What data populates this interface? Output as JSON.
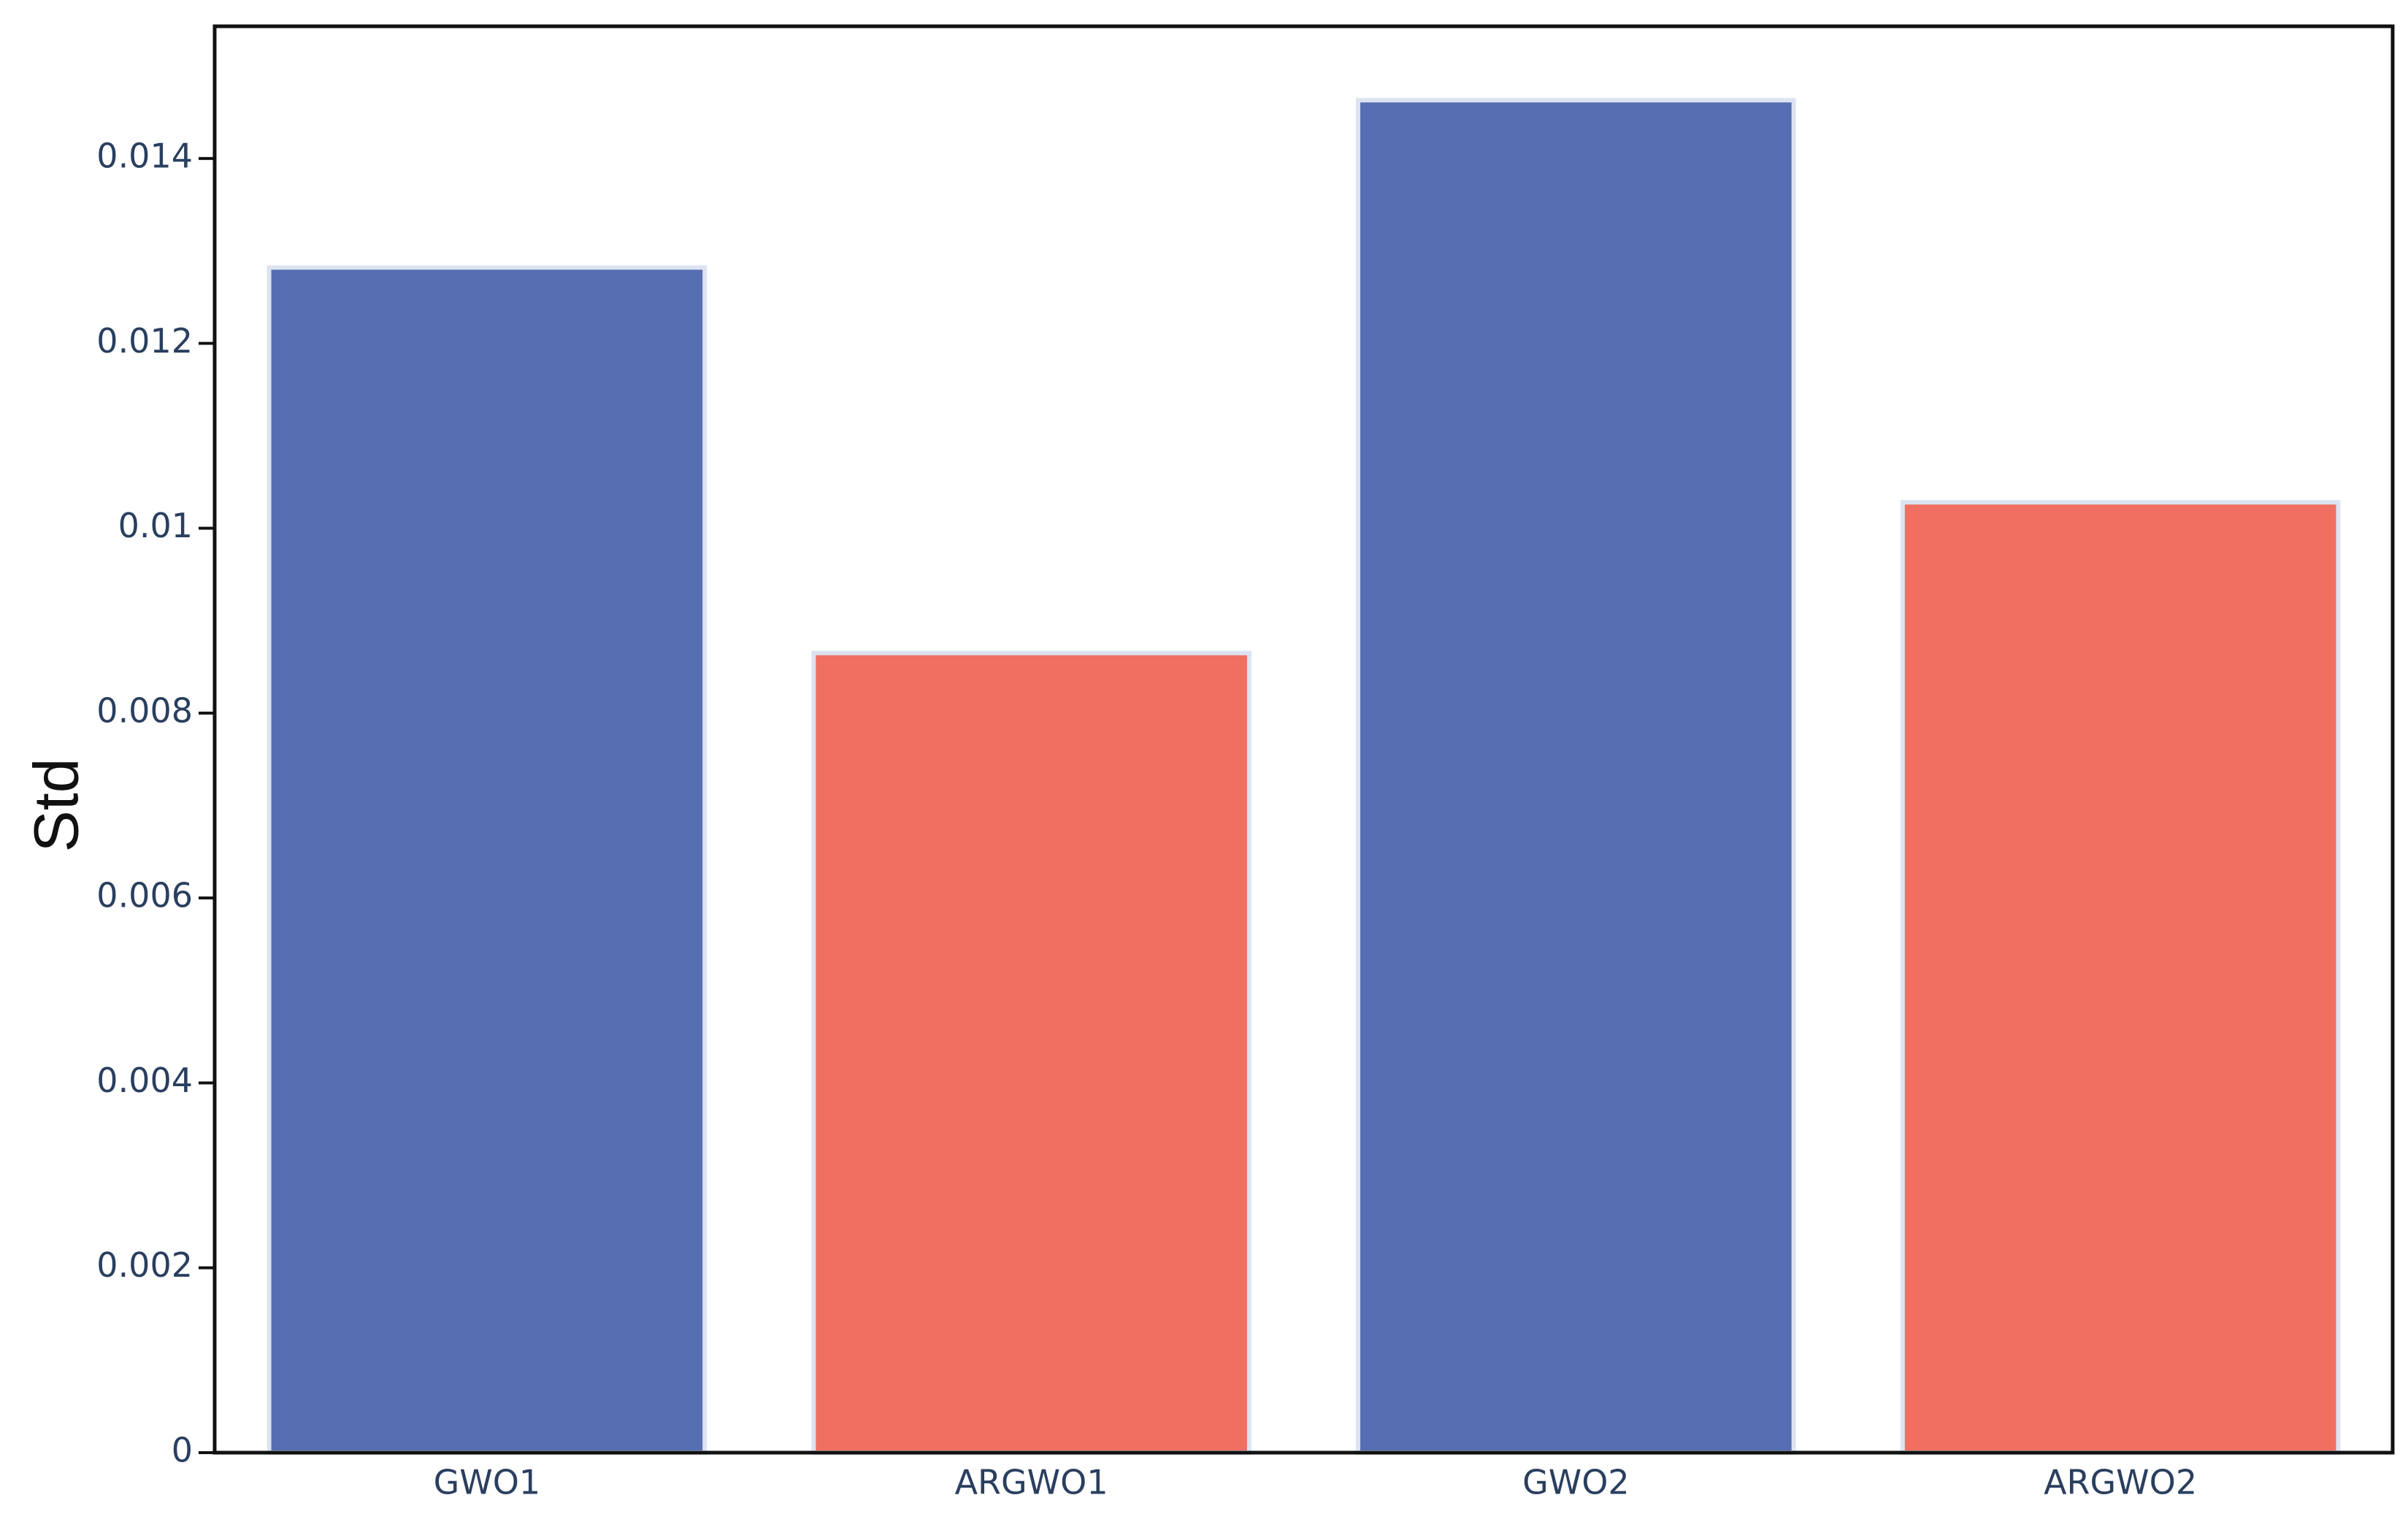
{
  "chart_data": {
    "type": "bar",
    "y_label": "Std",
    "categories": [
      "GWO1",
      "ARGWO1",
      "GWO2",
      "ARGWO2"
    ],
    "values": [
      0.01282,
      0.00865,
      0.01463,
      0.01028
    ],
    "colors": [
      "#566db1",
      "#f06f61",
      "#566db1",
      "#f06f61"
    ],
    "ylim": [
      0,
      0.01543
    ],
    "yticks": [
      0,
      0.002,
      0.004,
      0.006,
      0.008,
      0.01,
      0.012,
      0.014
    ]
  }
}
